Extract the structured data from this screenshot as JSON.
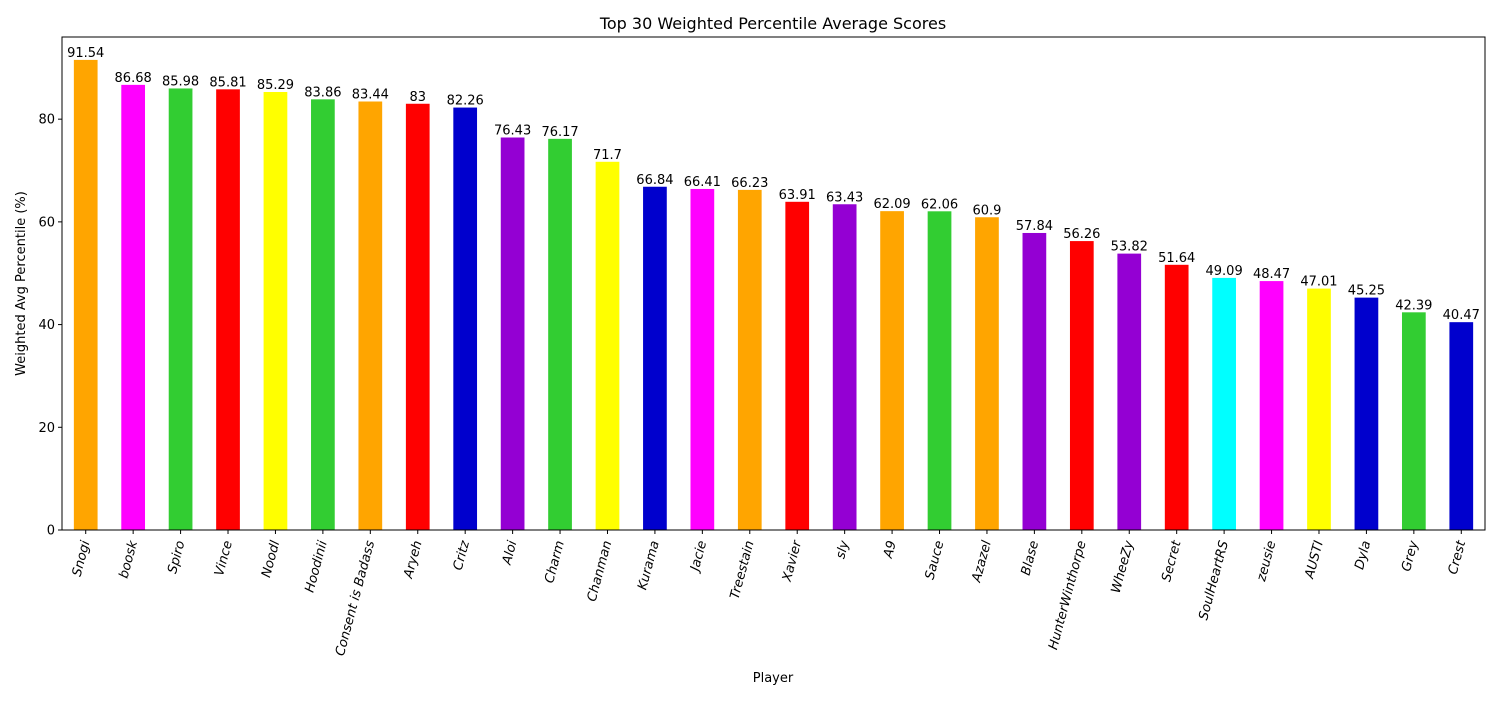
{
  "chart_data": {
    "type": "bar",
    "title": "Top 30 Weighted Percentile Average Scores",
    "xlabel": "Player",
    "ylabel": "Weighted Avg Percentile (%)",
    "ylim": [
      0,
      96
    ],
    "yticks": [
      0,
      20,
      40,
      60,
      80
    ],
    "grid": false,
    "categories": [
      "Snogi",
      "boosk",
      "Spiro",
      "Vince",
      "Noodl",
      "Hoodinii",
      "Consent is Badass",
      "Aryeh",
      "Critz",
      "Aloi",
      "Charm",
      "Chanman",
      "Kurama",
      "Jacie",
      "Treestain",
      "Xavier",
      "sly",
      "A9",
      "Sauce",
      "Azazel",
      "Blase",
      "HunterWinthorpe",
      "WheeZy",
      "Secret",
      "SoulHeartRS",
      "zeusie",
      "AUSTI",
      "Dyla",
      "Grey",
      "Crest"
    ],
    "values": [
      91.54,
      86.68,
      85.98,
      85.81,
      85.29,
      83.86,
      83.44,
      83,
      82.26,
      76.43,
      76.17,
      71.7,
      66.84,
      66.41,
      66.23,
      63.91,
      63.43,
      62.09,
      62.06,
      60.9,
      57.84,
      56.26,
      53.82,
      51.64,
      49.09,
      48.47,
      47.01,
      45.25,
      42.39,
      40.47
    ],
    "value_labels": [
      "91.54",
      "86.68",
      "85.98",
      "85.81",
      "85.29",
      "83.86",
      "83.44",
      "83",
      "82.26",
      "76.43",
      "76.17",
      "71.7",
      "66.84",
      "66.41",
      "66.23",
      "63.91",
      "63.43",
      "62.09",
      "62.06",
      "60.9",
      "57.84",
      "56.26",
      "53.82",
      "51.64",
      "49.09",
      "48.47",
      "47.01",
      "45.25",
      "42.39",
      "40.47"
    ],
    "colors": [
      "#ffa500",
      "#ff00ff",
      "#32cd32",
      "#ff0000",
      "#ffff00",
      "#32cd32",
      "#ffa500",
      "#ff0000",
      "#0000cd",
      "#9400d3",
      "#32cd32",
      "#ffff00",
      "#0000cd",
      "#ff00ff",
      "#ffa500",
      "#ff0000",
      "#9400d3",
      "#ffa500",
      "#32cd32",
      "#ffa500",
      "#9400d3",
      "#ff0000",
      "#9400d3",
      "#ff0000",
      "#00ffff",
      "#ff00ff",
      "#ffff00",
      "#0000cd",
      "#32cd32",
      "#0000cd"
    ]
  }
}
